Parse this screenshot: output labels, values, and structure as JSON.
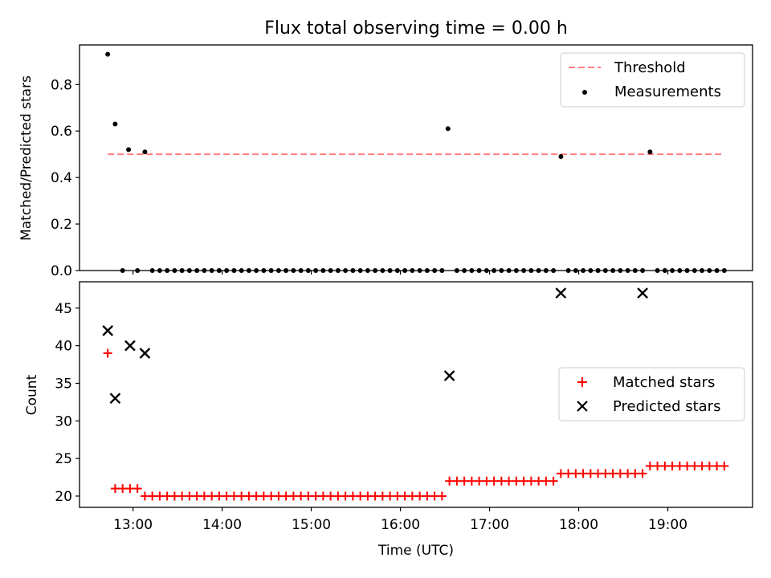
{
  "chart_data": [
    {
      "type": "scatter",
      "title": "Flux total observing time = 0.00 h",
      "xlabel": "",
      "ylabel": "Matched/Predicted stars",
      "xlim": [
        "12:24",
        "19:57"
      ],
      "ylim": [
        0,
        0.97
      ],
      "yticks": [
        "0.0",
        "0.2",
        "0.4",
        "0.6",
        "0.8"
      ],
      "ytick_values": [
        0,
        0.2,
        0.4,
        0.6,
        0.8
      ],
      "legend": {
        "position": "upper right",
        "entries": [
          "Threshold",
          "Measurements"
        ]
      },
      "series": [
        {
          "name": "Threshold",
          "style": "dashed-line",
          "color": "#ff7f7f",
          "x": [
            "12:43",
            "19:36"
          ],
          "y": [
            0.5,
            0.5
          ]
        },
        {
          "name": "Measurements",
          "style": "dot",
          "color": "#000000",
          "x": [
            "12:43",
            "12:48",
            "12:53",
            "12:57",
            "13:03",
            "13:08",
            "13:13",
            "13:18",
            "13:23",
            "13:28",
            "13:33",
            "13:38",
            "13:43",
            "13:48",
            "13:53",
            "13:58",
            "14:03",
            "14:08",
            "14:13",
            "14:18",
            "14:23",
            "14:28",
            "14:33",
            "14:38",
            "14:43",
            "14:48",
            "14:53",
            "14:58",
            "15:03",
            "15:08",
            "15:13",
            "15:18",
            "15:23",
            "15:28",
            "15:33",
            "15:38",
            "15:43",
            "15:48",
            "15:53",
            "15:58",
            "16:03",
            "16:08",
            "16:13",
            "16:18",
            "16:23",
            "16:28",
            "16:32",
            "16:38",
            "16:43",
            "16:48",
            "16:53",
            "16:58",
            "17:03",
            "17:08",
            "17:13",
            "17:18",
            "17:23",
            "17:28",
            "17:33",
            "17:38",
            "17:43",
            "17:48",
            "17:53",
            "17:58",
            "18:03",
            "18:08",
            "18:13",
            "18:18",
            "18:23",
            "18:28",
            "18:33",
            "18:38",
            "18:43",
            "18:48",
            "18:53",
            "18:58",
            "19:03",
            "19:08",
            "19:13",
            "19:18",
            "19:23",
            "19:28",
            "19:33",
            "19:38"
          ],
          "y": [
            0.93,
            0.63,
            0.0,
            0.52,
            0.0,
            0.51,
            0.0,
            0.0,
            0.0,
            0.0,
            0.0,
            0.0,
            0.0,
            0.0,
            0.0,
            0.0,
            0.0,
            0.0,
            0.0,
            0.0,
            0.0,
            0.0,
            0.0,
            0.0,
            0.0,
            0.0,
            0.0,
            0.0,
            0.0,
            0.0,
            0.0,
            0.0,
            0.0,
            0.0,
            0.0,
            0.0,
            0.0,
            0.0,
            0.0,
            0.0,
            0.0,
            0.0,
            0.0,
            0.0,
            0.0,
            0.0,
            0.61,
            0.0,
            0.0,
            0.0,
            0.0,
            0.0,
            0.0,
            0.0,
            0.0,
            0.0,
            0.0,
            0.0,
            0.0,
            0.0,
            0.0,
            0.49,
            0.0,
            0.0,
            0.0,
            0.0,
            0.0,
            0.0,
            0.0,
            0.0,
            0.0,
            0.0,
            0.0,
            0.51,
            0.0,
            0.0,
            0.0,
            0.0,
            0.0,
            0.0,
            0.0,
            0.0,
            0.0,
            0.0
          ]
        }
      ]
    },
    {
      "type": "scatter",
      "title": "",
      "xlabel": "Time (UTC)",
      "ylabel": "Count",
      "xlim": [
        "12:24",
        "19:57"
      ],
      "ylim": [
        18.5,
        48.5
      ],
      "xticks": [
        "13:00",
        "14:00",
        "15:00",
        "16:00",
        "17:00",
        "18:00",
        "19:00"
      ],
      "yticks": [
        "20",
        "25",
        "30",
        "35",
        "40",
        "45"
      ],
      "ytick_values": [
        20,
        25,
        30,
        35,
        40,
        45
      ],
      "legend": {
        "position": "center right",
        "entries": [
          "Matched stars",
          "Predicted stars"
        ]
      },
      "series": [
        {
          "name": "Matched stars",
          "style": "plus",
          "color": "#ff0000",
          "x": [
            "12:43",
            "12:48",
            "12:53",
            "12:58",
            "13:03",
            "13:08",
            "13:13",
            "13:18",
            "13:23",
            "13:28",
            "13:33",
            "13:38",
            "13:43",
            "13:48",
            "13:53",
            "13:58",
            "14:03",
            "14:08",
            "14:13",
            "14:18",
            "14:23",
            "14:28",
            "14:33",
            "14:38",
            "14:43",
            "14:48",
            "14:53",
            "14:58",
            "15:03",
            "15:08",
            "15:13",
            "15:18",
            "15:23",
            "15:28",
            "15:33",
            "15:38",
            "15:43",
            "15:48",
            "15:53",
            "15:58",
            "16:03",
            "16:08",
            "16:13",
            "16:18",
            "16:23",
            "16:28",
            "16:33",
            "16:38",
            "16:43",
            "16:48",
            "16:53",
            "16:58",
            "17:03",
            "17:08",
            "17:13",
            "17:18",
            "17:23",
            "17:28",
            "17:33",
            "17:38",
            "17:43",
            "17:48",
            "17:53",
            "17:58",
            "18:03",
            "18:08",
            "18:13",
            "18:18",
            "18:23",
            "18:28",
            "18:33",
            "18:38",
            "18:43",
            "18:48",
            "18:53",
            "18:58",
            "19:03",
            "19:08",
            "19:13",
            "19:18",
            "19:23",
            "19:28",
            "19:33",
            "19:38"
          ],
          "y": [
            39,
            21,
            21,
            21,
            21,
            20,
            20,
            20,
            20,
            20,
            20,
            20,
            20,
            20,
            20,
            20,
            20,
            20,
            20,
            20,
            20,
            20,
            20,
            20,
            20,
            20,
            20,
            20,
            20,
            20,
            20,
            20,
            20,
            20,
            20,
            20,
            20,
            20,
            20,
            20,
            20,
            20,
            20,
            20,
            20,
            20,
            22,
            22,
            22,
            22,
            22,
            22,
            22,
            22,
            22,
            22,
            22,
            22,
            22,
            22,
            22,
            23,
            23,
            23,
            23,
            23,
            23,
            23,
            23,
            23,
            23,
            23,
            23,
            24,
            24,
            24,
            24,
            24,
            24,
            24,
            24,
            24,
            24,
            24
          ]
        },
        {
          "name": "Predicted stars",
          "style": "x",
          "color": "#000000",
          "x": [
            "12:43",
            "12:48",
            "12:58",
            "13:08",
            "16:33",
            "17:48",
            "18:43"
          ],
          "y": [
            42,
            33,
            40,
            39,
            36,
            47,
            47
          ]
        }
      ]
    }
  ]
}
